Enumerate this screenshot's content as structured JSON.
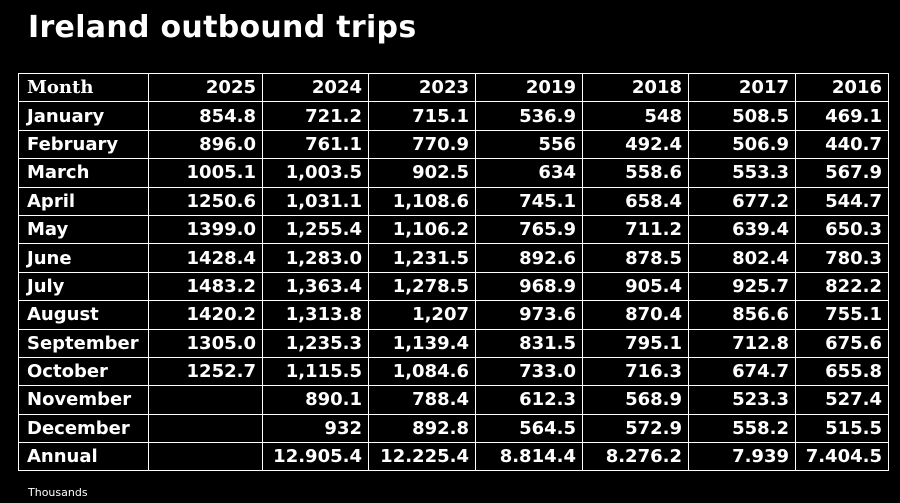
{
  "header": {
    "title": "Ireland outbound trips"
  },
  "table": {
    "columns": [
      "Month",
      "2025",
      "2024",
      "2023",
      "2019",
      "2018",
      "2017",
      "2016"
    ],
    "rows": [
      [
        "January",
        "854.8",
        "721.2",
        "715.1",
        "536.9",
        "548",
        "508.5",
        "469.1"
      ],
      [
        "February",
        "896.0",
        "761.1",
        "770.9",
        "556",
        "492.4",
        "506.9",
        "440.7"
      ],
      [
        "March",
        "1005.1",
        "1,003.5",
        "902.5",
        "634",
        "558.6",
        "553.3",
        "567.9"
      ],
      [
        "April",
        "1250.6",
        "1,031.1",
        "1,108.6",
        "745.1",
        "658.4",
        "677.2",
        "544.7"
      ],
      [
        "May",
        "1399.0",
        "1,255.4",
        "1,106.2",
        "765.9",
        "711.2",
        "639.4",
        "650.3"
      ],
      [
        "June",
        "1428.4",
        "1,283.0",
        "1,231.5",
        "892.6",
        "878.5",
        "802.4",
        "780.3"
      ],
      [
        "July",
        "1483.2",
        "1,363.4",
        "1,278.5",
        "968.9",
        "905.4",
        "925.7",
        "822.2"
      ],
      [
        "August",
        "1420.2",
        "1,313.8",
        "1,207",
        "973.6",
        "870.4",
        "856.6",
        "755.1"
      ],
      [
        "September",
        "1305.0",
        "1,235.3",
        "1,139.4",
        "831.5",
        "795.1",
        "712.8",
        "675.6"
      ],
      [
        "October",
        "1252.7",
        "1,115.5",
        "1,084.6",
        "733.0",
        "716.3",
        "674.7",
        "655.8"
      ],
      [
        "November",
        null,
        "890.1",
        "788.4",
        "612.3",
        "568.9",
        "523.3",
        "527.4"
      ],
      [
        "December",
        null,
        "932",
        "892.8",
        "564.5",
        "572.9",
        "558.2",
        "515.5"
      ],
      [
        "Annual",
        null,
        "12.905.4",
        "12.225.4",
        "8.814.4",
        "8.276.2",
        "7.939",
        "7.404.5"
      ]
    ]
  },
  "footer": {
    "note": "Thousands"
  }
}
